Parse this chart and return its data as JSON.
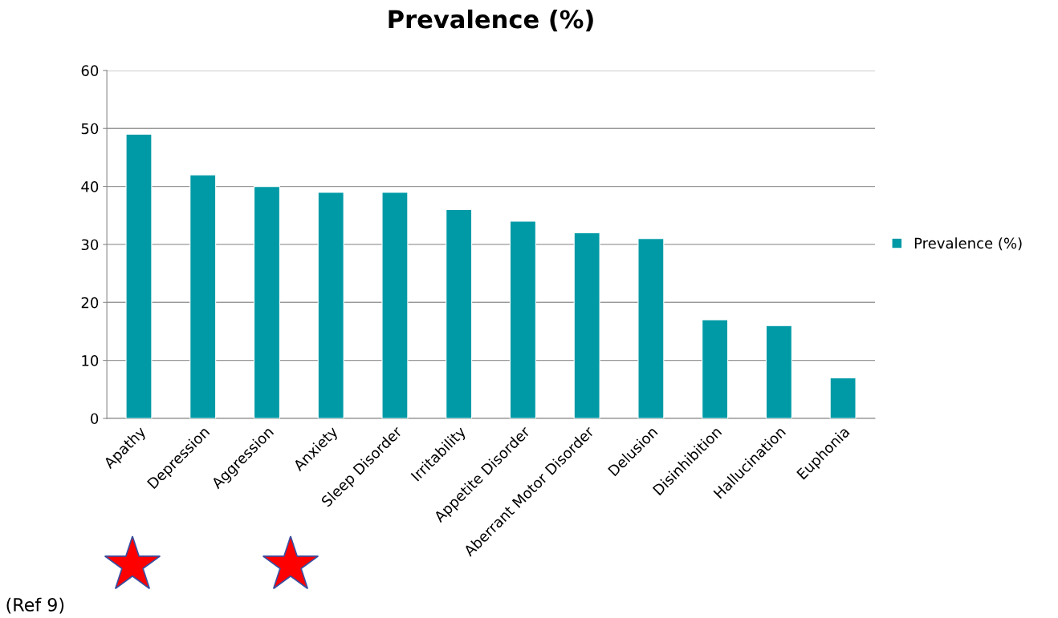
{
  "chart_data": {
    "type": "bar",
    "title": "Prevalence (%)",
    "categories": [
      "Apathy",
      "Depression",
      "Aggression",
      "Anxiety",
      "Sleep Disorder",
      "Irritability",
      "Appetite Disorder",
      "Aberrant Motor Disorder",
      "Delusion",
      "Disinhibition",
      "Hallucination",
      "Euphonia"
    ],
    "series": [
      {
        "name": "Prevalence (%)",
        "color": "#009aa6",
        "values": [
          49,
          42,
          40,
          39,
          39,
          36,
          34,
          32,
          31,
          17,
          16,
          7
        ]
      }
    ],
    "ylim": [
      0,
      60
    ],
    "yticks": [
      0,
      10,
      20,
      30,
      40,
      50,
      60
    ],
    "grid": "y",
    "legend": "right",
    "annotations": [
      "(Ref 9)"
    ]
  }
}
